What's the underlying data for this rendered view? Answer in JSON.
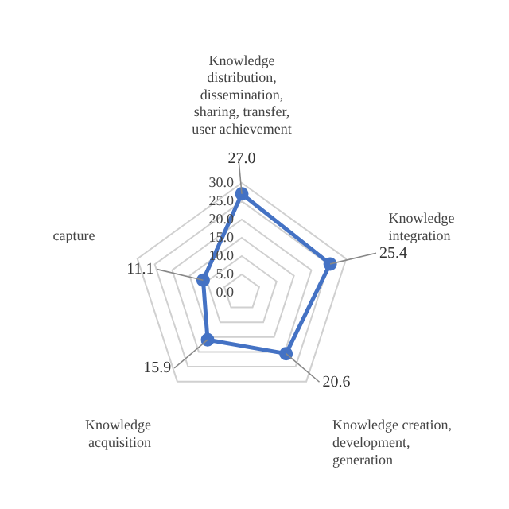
{
  "chart_data": {
    "type": "radar",
    "categories": [
      "Knowledge distribution, dissemination, sharing, transfer, user achievement",
      "Knowledge integration",
      "Knowledge creation, development, generation",
      "Knowledge acquisition",
      "capture"
    ],
    "series": [
      {
        "color": "#4472c4",
        "values": [
          27.0,
          25.4,
          20.6,
          15.9,
          11.1
        ],
        "value_labels": [
          "27.0",
          "25.4",
          "20.6",
          "15.9",
          "11.1"
        ]
      }
    ],
    "ylim": [
      0,
      30
    ],
    "yticks": [
      {
        "value": 0,
        "label": "0.0"
      },
      {
        "value": 5,
        "label": "5.0"
      },
      {
        "value": 10,
        "label": "10.0"
      },
      {
        "value": 15,
        "label": "15.0"
      },
      {
        "value": 20,
        "label": "20.0"
      },
      {
        "value": 25,
        "label": "25.0"
      },
      {
        "value": 30,
        "label": "30.0"
      }
    ],
    "grid": true,
    "marker": "circle",
    "legend": false
  }
}
